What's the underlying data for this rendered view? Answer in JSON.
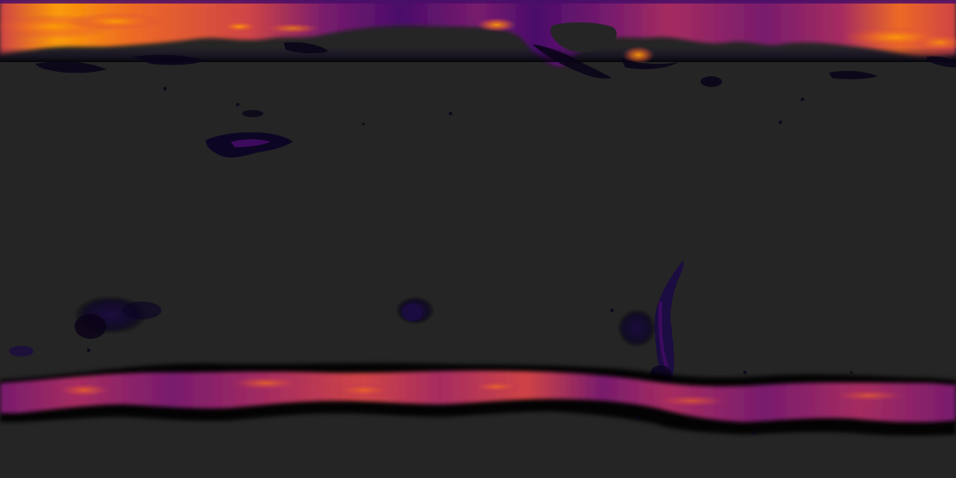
{
  "map": {
    "projection": "equirectangular",
    "background_color": "#252525",
    "colormap": "inferno",
    "colormap_stops": [
      "#000004",
      "#1b0c41",
      "#4a0c6b",
      "#781c6d",
      "#a52c60",
      "#cf4446",
      "#ed6925",
      "#fb9b06",
      "#f7d13d"
    ],
    "labels_visible": false,
    "legend_visible": false
  }
}
